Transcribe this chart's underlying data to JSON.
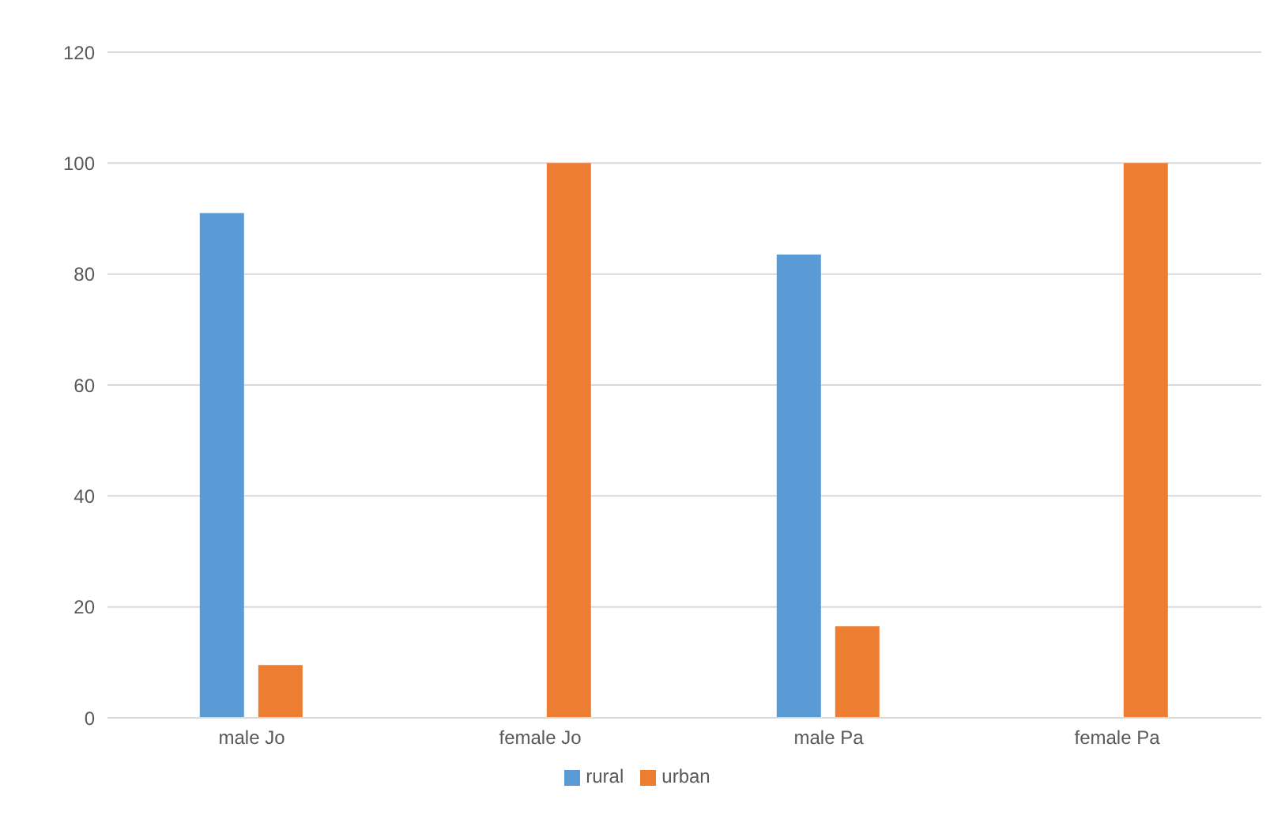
{
  "chart_data": {
    "type": "bar",
    "categories": [
      "male Jo",
      "female Jo",
      "male Pa",
      "female Pa"
    ],
    "series": [
      {
        "name": "rural",
        "color": "#5b9bd5",
        "values": [
          91,
          0,
          83.5,
          0
        ]
      },
      {
        "name": "urban",
        "color": "#ed7d31",
        "values": [
          9.5,
          100,
          16.5,
          100
        ]
      }
    ],
    "ylim": [
      0,
      120
    ],
    "yticks": [
      0,
      20,
      40,
      60,
      80,
      100,
      120
    ],
    "grid": "y",
    "legend": "bottom"
  }
}
